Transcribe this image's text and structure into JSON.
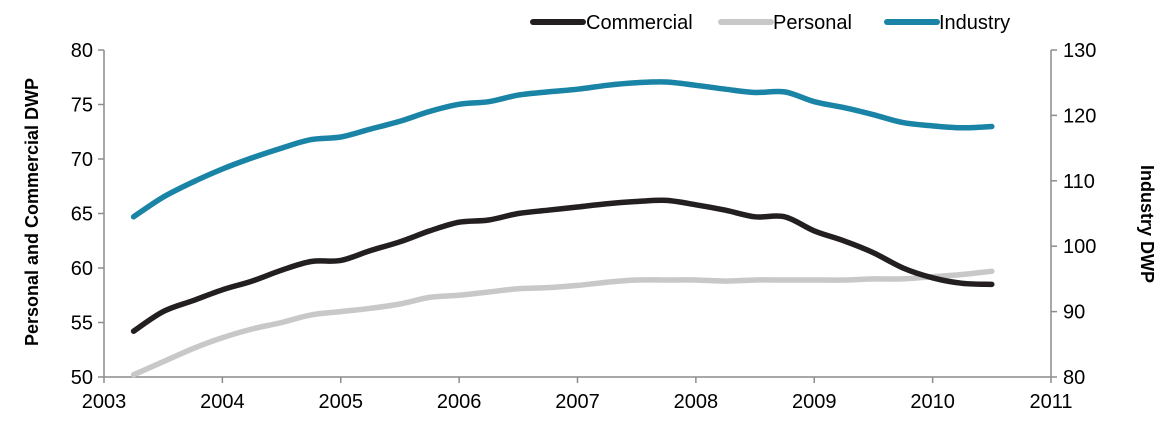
{
  "chart_data": {
    "type": "line",
    "title": "",
    "xlabel": "",
    "ylabel": "Personal and Commercial DWP",
    "y2label": "Industry DWP",
    "xlim": [
      2003,
      2011
    ],
    "ylim": [
      50,
      80
    ],
    "y2lim": [
      80,
      130
    ],
    "x_ticks": [
      "2003",
      "2004",
      "2005",
      "2006",
      "2007",
      "2008",
      "2009",
      "2010",
      "2011"
    ],
    "y_ticks": [
      "50",
      "55",
      "60",
      "65",
      "70",
      "75",
      "80"
    ],
    "y2_ticks": [
      "80",
      "90",
      "100",
      "110",
      "120",
      "130"
    ],
    "legend_position": "top-right",
    "grid": false,
    "series": [
      {
        "name": "Commercial",
        "axis": "left",
        "color": "#231f20",
        "x": [
          2003.25,
          2003.5,
          2003.75,
          2004.0,
          2004.25,
          2004.5,
          2004.75,
          2005.0,
          2005.25,
          2005.5,
          2005.75,
          2006.0,
          2006.25,
          2006.5,
          2006.75,
          2007.0,
          2007.25,
          2007.5,
          2007.75,
          2008.0,
          2008.25,
          2008.5,
          2008.75,
          2009.0,
          2009.25,
          2009.5,
          2009.75,
          2010.0,
          2010.25,
          2010.5
        ],
        "values": [
          54.2,
          56.0,
          57.0,
          58.0,
          58.8,
          59.8,
          60.6,
          60.7,
          61.6,
          62.4,
          63.4,
          64.2,
          64.4,
          65.0,
          65.3,
          65.6,
          65.9,
          66.1,
          66.2,
          65.8,
          65.3,
          64.7,
          64.7,
          63.4,
          62.5,
          61.4,
          60.0,
          59.1,
          58.6,
          58.5
        ]
      },
      {
        "name": "Personal",
        "axis": "left",
        "color": "#c8c8c8",
        "x": [
          2003.25,
          2003.5,
          2003.75,
          2004.0,
          2004.25,
          2004.5,
          2004.75,
          2005.0,
          2005.25,
          2005.5,
          2005.75,
          2006.0,
          2006.25,
          2006.5,
          2006.75,
          2007.0,
          2007.25,
          2007.5,
          2007.75,
          2008.0,
          2008.25,
          2008.5,
          2008.75,
          2009.0,
          2009.25,
          2009.5,
          2009.75,
          2010.0,
          2010.25,
          2010.5
        ],
        "values": [
          50.2,
          51.4,
          52.6,
          53.6,
          54.4,
          55.0,
          55.7,
          56.0,
          56.3,
          56.7,
          57.3,
          57.5,
          57.8,
          58.1,
          58.2,
          58.4,
          58.7,
          58.9,
          58.9,
          58.9,
          58.8,
          58.9,
          58.9,
          58.9,
          58.9,
          59.0,
          59.0,
          59.2,
          59.4,
          59.7
        ]
      },
      {
        "name": "Industry",
        "axis": "right",
        "color": "#1a84a6",
        "x": [
          2003.25,
          2003.5,
          2003.75,
          2004.0,
          2004.25,
          2004.5,
          2004.75,
          2005.0,
          2005.25,
          2005.5,
          2005.75,
          2006.0,
          2006.25,
          2006.5,
          2006.75,
          2007.0,
          2007.25,
          2007.5,
          2007.75,
          2008.0,
          2008.25,
          2008.5,
          2008.75,
          2009.0,
          2009.25,
          2009.5,
          2009.75,
          2010.0,
          2010.25,
          2010.5
        ],
        "values": [
          104.5,
          107.5,
          109.8,
          111.8,
          113.5,
          115.0,
          116.3,
          116.7,
          117.9,
          119.1,
          120.6,
          121.7,
          122.1,
          123.1,
          123.6,
          124.0,
          124.6,
          125.0,
          125.1,
          124.6,
          124.0,
          123.5,
          123.6,
          122.1,
          121.2,
          120.1,
          118.9,
          118.4,
          118.1,
          118.3
        ]
      }
    ]
  }
}
